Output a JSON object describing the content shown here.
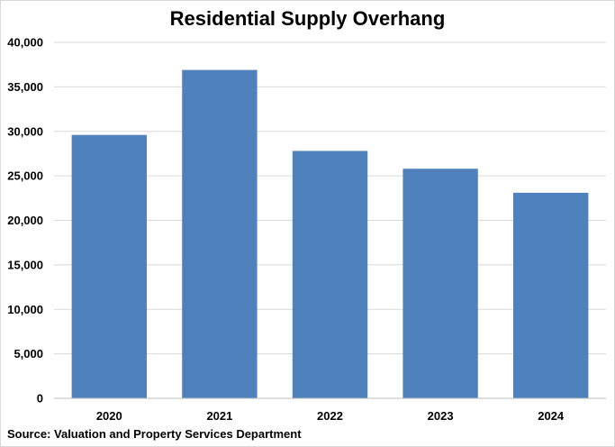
{
  "chart_data": {
    "type": "bar",
    "title": "Residential Supply Overhang",
    "xlabel": "",
    "ylabel": "",
    "categories": [
      "2020",
      "2021",
      "2022",
      "2023",
      "2024"
    ],
    "values": [
      29600,
      36900,
      27800,
      25800,
      23100
    ],
    "ylim": [
      0,
      40000
    ],
    "yticks": [
      0,
      5000,
      10000,
      15000,
      20000,
      25000,
      30000,
      35000,
      40000
    ],
    "ytick_labels": [
      "0",
      "5,000",
      "10,000",
      "15,000",
      "20,000",
      "25,000",
      "30,000",
      "35,000",
      "40,000"
    ],
    "grid": true,
    "legend": "none",
    "bar_color": "#4f81bd",
    "source": "Source: Valuation and Property Services Department"
  }
}
